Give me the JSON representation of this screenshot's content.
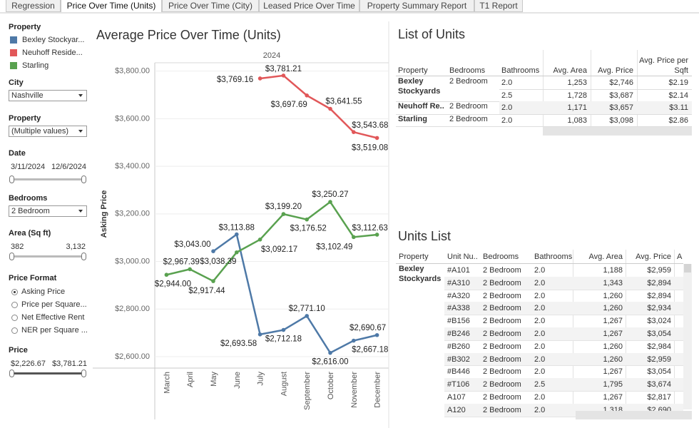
{
  "tabs": [
    "Regression",
    "Price Over Time (Units)",
    "Price Over Time (City)",
    "Leased Price Over Time",
    "Property Summary Report",
    "T1 Report"
  ],
  "active_tab": 1,
  "sidebar": {
    "legend_title": "Property",
    "city": {
      "label": "City",
      "value": "Nashville"
    },
    "property": {
      "label": "Property",
      "value": "(Multiple values)"
    },
    "date": {
      "label": "Date",
      "start": "3/11/2024",
      "end": "12/6/2024"
    },
    "bedrooms": {
      "label": "Bedrooms",
      "value": "2 Bedroom"
    },
    "area": {
      "label": "Area (Sq ft)",
      "min": "382",
      "max": "3,132"
    },
    "price_format": {
      "label": "Price Format",
      "options": [
        "Asking Price",
        "Price per Square...",
        "Net Effective Rent",
        "NER per Square ..."
      ],
      "selected": 0
    },
    "price": {
      "label": "Price",
      "min": "$2,226.67",
      "max": "$3,781.21"
    }
  },
  "chart_data": {
    "type": "line",
    "title": "Average Price Over Time (Units)",
    "header": "2024",
    "y_label": "Asking Price",
    "categories": [
      "March",
      "April",
      "May",
      "June",
      "July",
      "August",
      "September",
      "October",
      "November",
      "December"
    ],
    "ylim": [
      2555,
      3835
    ],
    "yticks": [
      {
        "value": 2600,
        "label": "$2,600.00"
      },
      {
        "value": 2800,
        "label": "$2,800.00"
      },
      {
        "value": 3000,
        "label": "$3,000.00"
      },
      {
        "value": 3200,
        "label": "$3,200.00"
      },
      {
        "value": 3400,
        "label": "$3,400.00"
      },
      {
        "value": 3600,
        "label": "$3,600.00"
      },
      {
        "value": 3800,
        "label": "$3,800.00"
      }
    ],
    "grid": true,
    "series": [
      {
        "name": "Bexley Stockyar...",
        "color": "#4e79a7",
        "values": [
          null,
          null,
          3043.0,
          3113.88,
          2693.58,
          2712.18,
          2771.1,
          2616.0,
          2667.18,
          2690.67
        ],
        "value_labels": [
          null,
          null,
          "$3,043.00",
          "$3,113.88",
          "$2,693.58",
          "$2,712.18",
          "$2,771.10",
          "$2,616.00",
          "$2,667.18",
          "$2,690.67"
        ]
      },
      {
        "name": "Neuhoff Reside...",
        "color": "#e15759",
        "values": [
          null,
          null,
          null,
          null,
          3769.16,
          3781.21,
          3697.69,
          3641.55,
          3543.68,
          3519.08
        ],
        "value_labels": [
          null,
          null,
          null,
          null,
          "$3,769.16",
          "$3,781.21",
          "$3,697.69",
          "$3,641.55",
          "$3,543.68",
          "$3,519.08"
        ]
      },
      {
        "name": "Starling",
        "color": "#59a14f",
        "values": [
          2944.0,
          2967.39,
          2917.44,
          3038.39,
          3092.17,
          3199.2,
          3176.52,
          3250.27,
          3102.49,
          3112.63
        ],
        "value_labels": [
          "$2,944.00",
          "$2,967.39",
          "$2,917.44",
          "$3,038.39",
          "$3,092.17",
          "$3,199.20",
          "$3,176.52",
          "$3,250.27",
          "$3,102.49",
          "$3,112.63"
        ]
      }
    ]
  },
  "list_of_units": {
    "title": "List of Units",
    "columns": [
      "Property",
      "Bedrooms",
      "Bathrooms",
      "Avg. Area",
      "Avg. Price",
      "Avg. Price per Sqft"
    ],
    "groups": [
      {
        "property": "Bexley Stockyards",
        "bedrooms": "2 Bedroom",
        "rows": [
          [
            "2.0",
            "1,253",
            "$2,746",
            "$2.19"
          ],
          [
            "2.5",
            "1,728",
            "$3,687",
            "$2.14"
          ]
        ]
      },
      {
        "property": "Neuhoff Re..",
        "bedrooms": "2 Bedroom",
        "rows": [
          [
            "2.0",
            "1,171",
            "$3,657",
            "$3.11"
          ]
        ]
      },
      {
        "property": "Starling",
        "bedrooms": "2 Bedroom",
        "rows": [
          [
            "2.0",
            "1,083",
            "$3,098",
            "$2.86"
          ]
        ]
      }
    ]
  },
  "units_list": {
    "title": "Units List",
    "columns": [
      "Property",
      "Unit Nu..",
      "Bedrooms",
      "Bathrooms",
      "Avg. Area",
      "Avg. Price",
      "A"
    ],
    "groups": [
      {
        "property": "Bexley Stockyards",
        "rows": [
          [
            "#A101",
            "2 Bedroom",
            "2.0",
            "1,188",
            "$2,959"
          ],
          [
            "#A310",
            "2 Bedroom",
            "2.0",
            "1,343",
            "$2,894"
          ],
          [
            "#A320",
            "2 Bedroom",
            "2.0",
            "1,260",
            "$2,894"
          ],
          [
            "#A338",
            "2 Bedroom",
            "2.0",
            "1,260",
            "$2,934"
          ],
          [
            "#B156",
            "2 Bedroom",
            "2.0",
            "1,267",
            "$3,024"
          ],
          [
            "#B246",
            "2 Bedroom",
            "2.0",
            "1,267",
            "$3,054"
          ],
          [
            "#B260",
            "2 Bedroom",
            "2.0",
            "1,260",
            "$2,984"
          ],
          [
            "#B302",
            "2 Bedroom",
            "2.0",
            "1,260",
            "$2,959"
          ],
          [
            "#B446",
            "2 Bedroom",
            "2.0",
            "1,267",
            "$3,054"
          ],
          [
            "#T106",
            "2 Bedroom",
            "2.5",
            "1,795",
            "$3,674"
          ],
          [
            "A107",
            "2 Bedroom",
            "2.0",
            "1,267",
            "$2,817"
          ],
          [
            "A120",
            "2 Bedroom",
            "2.0",
            "1,318",
            "$2,690"
          ]
        ]
      }
    ]
  }
}
